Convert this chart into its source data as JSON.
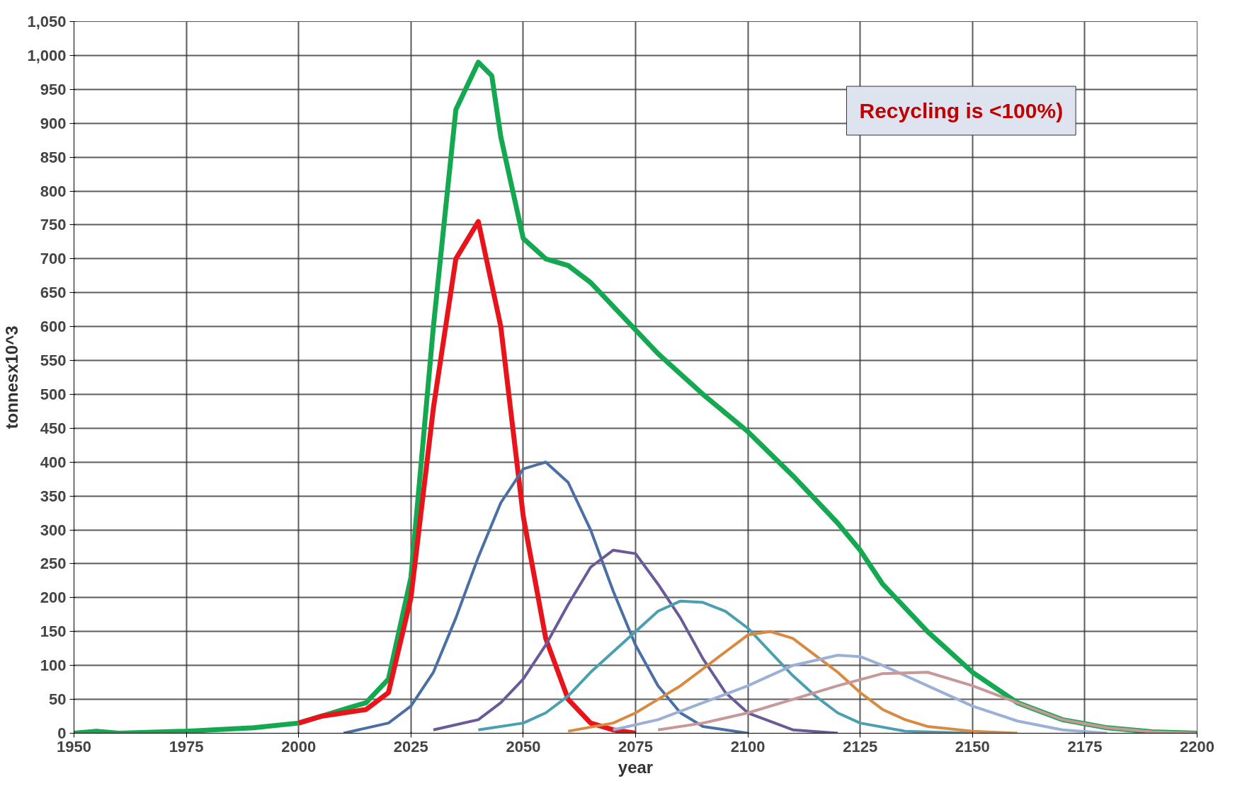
{
  "chart_data": {
    "type": "line",
    "xlabel": "year",
    "ylabel": "tonnesx10^3",
    "xlim": [
      1950,
      2200
    ],
    "ylim": [
      0,
      1050
    ],
    "xticks": [
      1950,
      1975,
      2000,
      2025,
      2050,
      2075,
      2100,
      2125,
      2150,
      2175,
      2200
    ],
    "yticks": [
      0,
      50,
      100,
      150,
      200,
      250,
      300,
      350,
      400,
      450,
      500,
      550,
      600,
      650,
      700,
      750,
      800,
      850,
      900,
      950,
      {
        "value": 1000,
        "label": "1,000"
      },
      {
        "value": 1050,
        "label": "1,050"
      }
    ],
    "grid": true,
    "marker": "none",
    "line_style": "solid",
    "annotations": [
      "Recycling is <100%)"
    ],
    "series": [
      {
        "color": "#14a850",
        "x": [
          1950,
          1955,
          1960,
          1975,
          1990,
          2000,
          2005,
          2010,
          2015,
          2020,
          2025,
          2030,
          2035,
          2040,
          2043,
          2045,
          2050,
          2055,
          2060,
          2065,
          2070,
          2075,
          2080,
          2090,
          2100,
          2110,
          2120,
          2125,
          2130,
          2140,
          2150,
          2160,
          2170,
          2180,
          2190,
          2200
        ],
        "values": [
          0,
          3,
          0,
          3,
          8,
          15,
          25,
          35,
          45,
          80,
          230,
          600,
          920,
          990,
          970,
          880,
          730,
          700,
          690,
          665,
          630,
          595,
          560,
          500,
          445,
          380,
          310,
          270,
          220,
          150,
          90,
          45,
          20,
          8,
          2,
          0
        ]
      },
      {
        "color": "#e8141b",
        "x": [
          2000,
          2005,
          2010,
          2015,
          2020,
          2025,
          2030,
          2035,
          2040,
          2045,
          2050,
          2055,
          2060,
          2065,
          2070,
          2075
        ],
        "values": [
          15,
          25,
          30,
          35,
          60,
          200,
          480,
          700,
          755,
          600,
          320,
          140,
          50,
          15,
          5,
          0
        ]
      },
      {
        "color": "#4a6fa5",
        "x": [
          2010,
          2020,
          2025,
          2030,
          2035,
          2040,
          2045,
          2050,
          2055,
          2060,
          2065,
          2070,
          2075,
          2080,
          2085,
          2090,
          2100
        ],
        "values": [
          0,
          15,
          40,
          90,
          170,
          260,
          340,
          390,
          400,
          370,
          300,
          210,
          130,
          70,
          30,
          10,
          0
        ]
      },
      {
        "color": "#6a5a9a",
        "x": [
          2030,
          2040,
          2045,
          2050,
          2055,
          2060,
          2065,
          2070,
          2075,
          2080,
          2085,
          2090,
          2095,
          2100,
          2110,
          2120
        ],
        "values": [
          5,
          20,
          45,
          80,
          130,
          190,
          245,
          270,
          265,
          220,
          170,
          110,
          60,
          30,
          5,
          0
        ]
      },
      {
        "color": "#4aa0b0",
        "x": [
          2040,
          2050,
          2055,
          2060,
          2065,
          2070,
          2075,
          2080,
          2085,
          2090,
          2095,
          2100,
          2105,
          2110,
          2115,
          2120,
          2125,
          2135,
          2150
        ],
        "values": [
          5,
          15,
          30,
          55,
          90,
          120,
          150,
          180,
          195,
          193,
          180,
          155,
          120,
          85,
          55,
          30,
          15,
          3,
          0
        ]
      },
      {
        "color": "#d88a40",
        "x": [
          2060,
          2070,
          2075,
          2080,
          2085,
          2090,
          2095,
          2100,
          2105,
          2110,
          2115,
          2120,
          2125,
          2130,
          2135,
          2140,
          2150,
          2160
        ],
        "values": [
          3,
          15,
          30,
          50,
          70,
          95,
          120,
          145,
          150,
          140,
          115,
          90,
          60,
          35,
          20,
          10,
          3,
          0
        ]
      },
      {
        "color": "#9ab0d8",
        "x": [
          2070,
          2080,
          2090,
          2100,
          2110,
          2120,
          2125,
          2130,
          2140,
          2150,
          2160,
          2170,
          2180
        ],
        "values": [
          5,
          20,
          45,
          70,
          100,
          115,
          113,
          100,
          70,
          40,
          18,
          5,
          0
        ]
      },
      {
        "color": "#c89898",
        "x": [
          2080,
          2090,
          2100,
          2110,
          2120,
          2130,
          2140,
          2150,
          2160,
          2170,
          2180,
          2190,
          2200
        ],
        "values": [
          5,
          15,
          30,
          50,
          70,
          88,
          90,
          70,
          45,
          20,
          8,
          2,
          0
        ]
      }
    ]
  }
}
